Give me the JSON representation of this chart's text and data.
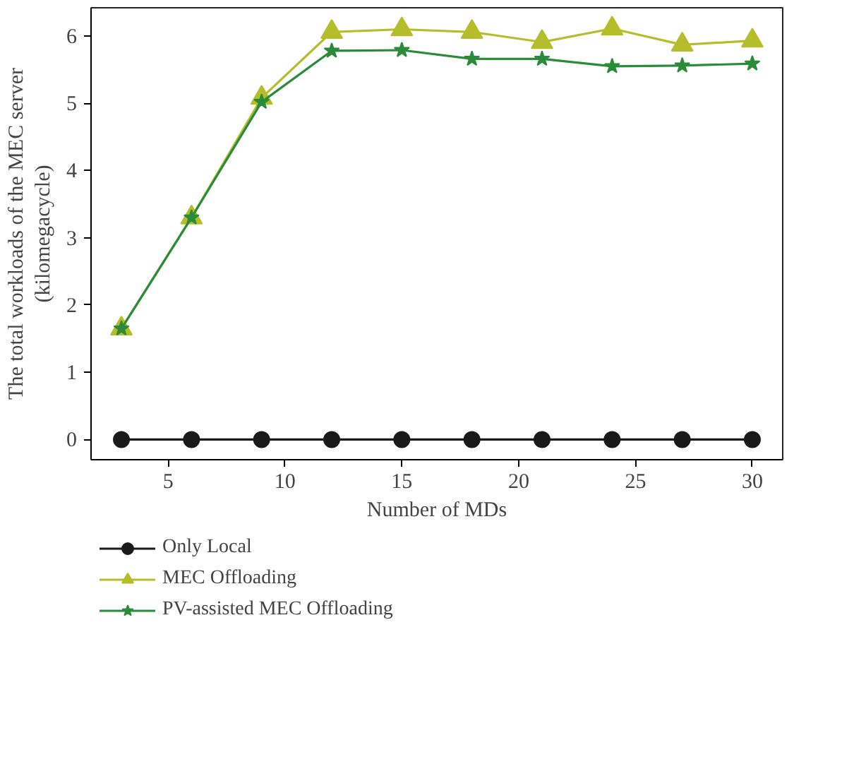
{
  "chart_data": {
    "type": "line",
    "xlabel": "Number of MDs",
    "ylabel": "The total workloads of the MEC server\n(kilomegacycle)",
    "x": [
      3,
      6,
      9,
      12,
      15,
      18,
      21,
      24,
      27,
      30
    ],
    "series": [
      {
        "name": "Only Local",
        "color": "#1a1a1a",
        "marker": "circle",
        "values": [
          0,
          0,
          0,
          0,
          0,
          0,
          0,
          0,
          0,
          0
        ]
      },
      {
        "name": "MEC Offloading",
        "color": "#b5bd2a",
        "marker": "triangle",
        "values": [
          1.65,
          3.3,
          5.08,
          6.06,
          6.1,
          6.06,
          5.91,
          6.11,
          5.87,
          5.93
        ]
      },
      {
        "name": "PV-assisted MEC Offloading",
        "color": "#2a8c3a",
        "marker": "star",
        "values": [
          1.65,
          3.3,
          5.02,
          5.78,
          5.79,
          5.66,
          5.66,
          5.55,
          5.56,
          5.59
        ]
      }
    ],
    "xlim": [
      1.7,
      31.3
    ],
    "ylim": [
      -0.3,
      6.42
    ],
    "xticks": [
      5,
      10,
      15,
      20,
      25,
      30
    ],
    "yticks": [
      0,
      1,
      2,
      3,
      4,
      5,
      6
    ],
    "grid": false,
    "legend": "bottom",
    "line_style": "solid"
  }
}
